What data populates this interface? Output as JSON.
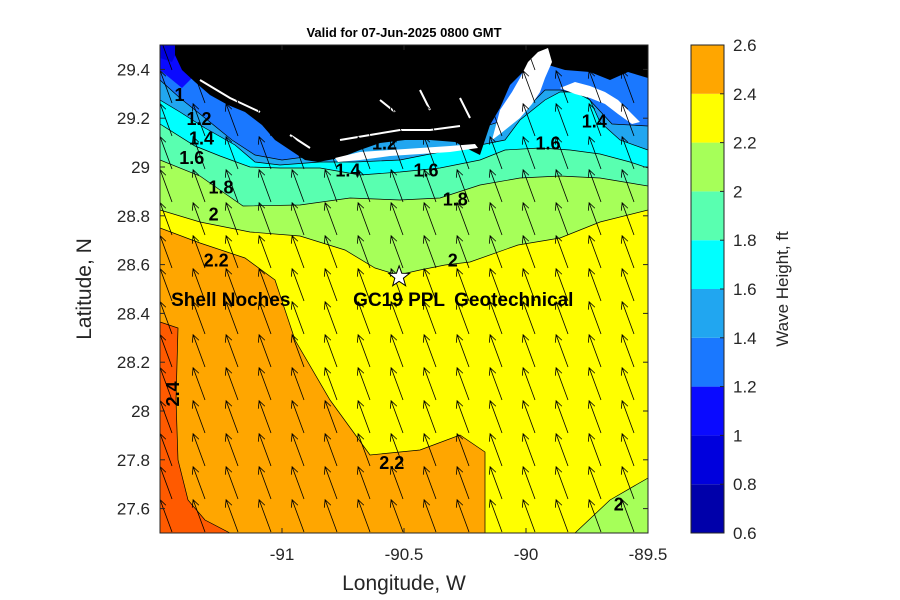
{
  "chart_data": {
    "type": "contour-map",
    "title": "Valid for 07-Jun-2025 0800 GMT",
    "xlabel": "Longitude, W",
    "ylabel": "Latitude, N",
    "xlim": [
      -91.5,
      -89.5
    ],
    "ylim": [
      27.5,
      29.5
    ],
    "x_ticks": [
      -91,
      -90.5,
      -90,
      -89.5
    ],
    "x_tick_labels": [
      "-91",
      "-90.5",
      "-90",
      "-89.5"
    ],
    "y_ticks": [
      27.6,
      27.8,
      28,
      28.2,
      28.4,
      28.6,
      28.8,
      29,
      29.2,
      29.4
    ],
    "y_tick_labels": [
      "27.6",
      "27.8",
      "28",
      "28.2",
      "28.4",
      "28.6",
      "28.8",
      "29",
      "29.2",
      "29.4"
    ],
    "colorbar": {
      "label": "Wave Height, ft",
      "levels": [
        0.6,
        0.8,
        1,
        1.2,
        1.4,
        1.6,
        1.8,
        2,
        2.2,
        2.4,
        2.6
      ],
      "tick_labels": [
        "0.6",
        "0.8",
        "1",
        "1.2",
        "1.4",
        "1.6",
        "1.8",
        "2",
        "2.2",
        "2.4",
        "2.6"
      ],
      "colors": [
        "#0000aa",
        "#0000dd",
        "#0a0aff",
        "#1a78ff",
        "#21a6f0",
        "#00ffff",
        "#59ffb0",
        "#a6ff59",
        "#ffff00",
        "#ffa600",
        "#ff5a00"
      ]
    },
    "contour_labels": [
      {
        "text": "1",
        "lon": -91.42,
        "lat": 29.3
      },
      {
        "text": "1.2",
        "lon": -91.34,
        "lat": 29.2
      },
      {
        "text": "1.4",
        "lon": -91.33,
        "lat": 29.12
      },
      {
        "text": "1.6",
        "lon": -91.37,
        "lat": 29.04
      },
      {
        "text": "1.8",
        "lon": -91.25,
        "lat": 28.92
      },
      {
        "text": "2",
        "lon": -91.28,
        "lat": 28.81
      },
      {
        "text": "2.2",
        "lon": -91.27,
        "lat": 28.62
      },
      {
        "text": "2.4",
        "lon": -91.45,
        "lat": 28.07
      },
      {
        "text": "1.4",
        "lon": -90.73,
        "lat": 28.99
      },
      {
        "text": "1.2",
        "lon": -90.58,
        "lat": 29.1
      },
      {
        "text": "1.6",
        "lon": -90.41,
        "lat": 28.99
      },
      {
        "text": "1.8",
        "lon": -90.29,
        "lat": 28.87
      },
      {
        "text": "1.6",
        "lon": -89.91,
        "lat": 29.1
      },
      {
        "text": "1.4",
        "lon": -89.72,
        "lat": 29.19
      },
      {
        "text": "2",
        "lon": -90.3,
        "lat": 28.62
      },
      {
        "text": "2.2",
        "lon": -90.55,
        "lat": 27.79
      },
      {
        "text": "2",
        "lon": -89.62,
        "lat": 27.62
      }
    ],
    "site": {
      "name": "GC19 PPL",
      "lon": -90.52,
      "lat": 28.55,
      "marker": "star"
    },
    "annotations": [
      {
        "text": "Shell Noches",
        "lon": -91.21,
        "lat": 28.46
      },
      {
        "text": "GC19 PPL",
        "lon": -90.52,
        "lat": 28.46
      },
      {
        "text": "Geotechnical",
        "lon": -90.05,
        "lat": 28.46
      }
    ],
    "wave_direction": "arrows point toward the north-northwest across the domain",
    "land_color": "#000000"
  }
}
